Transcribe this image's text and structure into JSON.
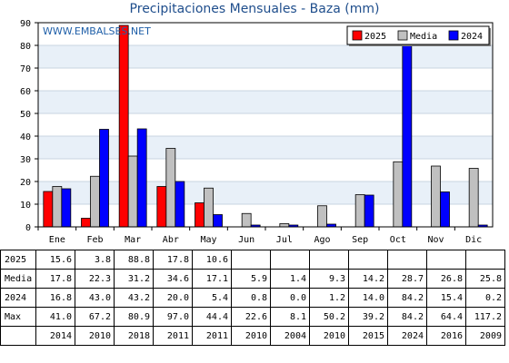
{
  "header": {
    "title": "Precipitaciones Mensuales - Baza (mm)"
  },
  "watermark": "WWW.EMBALSES.NET",
  "chart_data": {
    "type": "bar",
    "categories": [
      "Ene",
      "Feb",
      "Mar",
      "Abr",
      "May",
      "Jun",
      "Jul",
      "Ago",
      "Sep",
      "Oct",
      "Nov",
      "Dic"
    ],
    "series": [
      {
        "name": "2025",
        "color": "#ff0000",
        "values": [
          15.6,
          3.8,
          88.8,
          17.8,
          10.6,
          null,
          null,
          null,
          null,
          null,
          null,
          null
        ]
      },
      {
        "name": "Media",
        "color": "#c0c0c0",
        "values": [
          17.8,
          22.3,
          31.2,
          34.6,
          17.1,
          5.9,
          1.4,
          9.3,
          14.2,
          28.7,
          26.8,
          25.8
        ]
      },
      {
        "name": "2024",
        "color": "#0000ff",
        "values": [
          16.8,
          43.0,
          43.2,
          20.0,
          5.4,
          0.8,
          0.0,
          1.2,
          14.0,
          84.2,
          15.4,
          0.2
        ]
      }
    ],
    "ylim": [
      0,
      90
    ],
    "yticks": [
      0,
      10,
      20,
      30,
      40,
      50,
      60,
      70,
      80,
      90
    ],
    "grid": true,
    "legend_position": "top-right"
  },
  "table": {
    "rows": [
      {
        "label": "2025",
        "cells": [
          "15.6",
          "3.8",
          "88.8",
          "17.8",
          "10.6",
          "",
          "",
          "",
          "",
          "",
          "",
          ""
        ]
      },
      {
        "label": "Media",
        "cells": [
          "17.8",
          "22.3",
          "31.2",
          "34.6",
          "17.1",
          "5.9",
          "1.4",
          "9.3",
          "14.2",
          "28.7",
          "26.8",
          "25.8"
        ]
      },
      {
        "label": "2024",
        "cells": [
          "16.8",
          "43.0",
          "43.2",
          "20.0",
          "5.4",
          "0.8",
          "0.0",
          "1.2",
          "14.0",
          "84.2",
          "15.4",
          "0.2"
        ]
      },
      {
        "label": "Max",
        "cells": [
          "41.0",
          "67.2",
          "80.9",
          "97.0",
          "44.4",
          "22.6",
          "8.1",
          "50.2",
          "39.2",
          "84.2",
          "64.4",
          "117.2"
        ]
      },
      {
        "label": "",
        "cells": [
          "2014",
          "2010",
          "2018",
          "2011",
          "2011",
          "2010",
          "2004",
          "2010",
          "2015",
          "2024",
          "2016",
          "2009"
        ]
      }
    ]
  }
}
